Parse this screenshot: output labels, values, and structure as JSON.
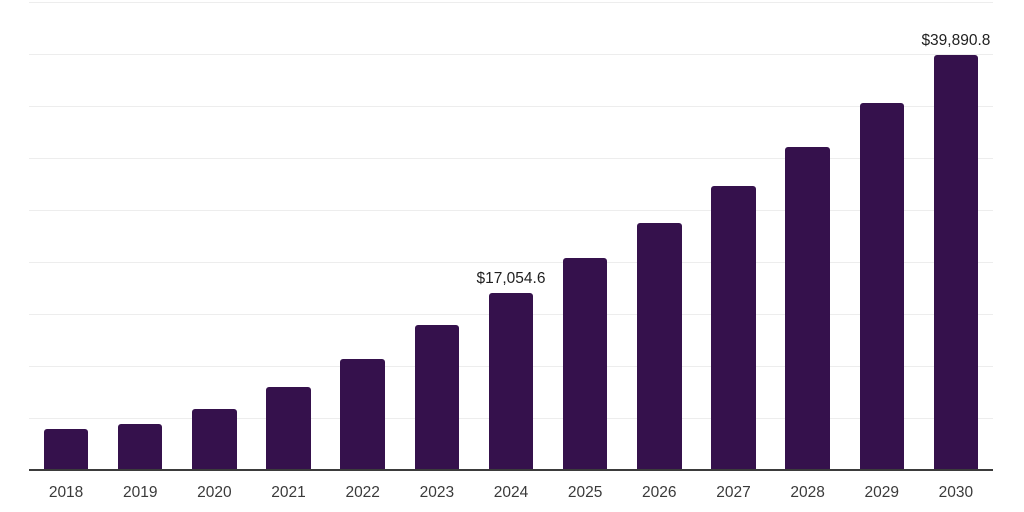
{
  "chart": {
    "background": "#ffffff",
    "bar_color": "#35114c",
    "axis_color": "#3b3b3b",
    "grid_color": "#ededed",
    "x_label_color": "#3a3a3a",
    "value_label_color": "#1f1f1f"
  },
  "chart_data": {
    "type": "bar",
    "title": "",
    "xlabel": "",
    "ylabel": "",
    "categories": [
      "2018",
      "2019",
      "2020",
      "2021",
      "2022",
      "2023",
      "2024",
      "2025",
      "2026",
      "2027",
      "2028",
      "2029",
      "2030"
    ],
    "values": [
      3910,
      4420,
      5840,
      7950,
      10640,
      13970,
      17054.6,
      20380,
      23780,
      27300,
      31080,
      35310,
      39890.8
    ],
    "data_labels": {
      "2024": "$17,054.6",
      "2030": "$39,890.8"
    },
    "ylim": [
      0,
      45000
    ],
    "grid_step": 5000,
    "grid": true,
    "legend": false,
    "y_tick_labels_visible": false
  }
}
